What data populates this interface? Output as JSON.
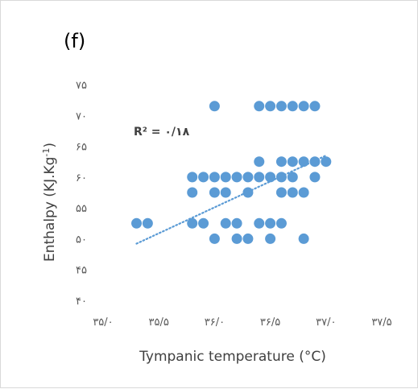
{
  "chart_data": {
    "type": "scatter",
    "panel_label": "(f)",
    "title": "",
    "xlabel": "Tympanic temperature (°C)",
    "ylabel": "Enthalpy (KJ.Kg-1)",
    "ylabel_main": "Enthalpy (KJ.Kg",
    "ylabel_sup": "-1",
    "ylabel_tail": ")",
    "xlim": [
      35.0,
      37.5
    ],
    "ylim": [
      40,
      75
    ],
    "x_ticks": [
      35.0,
      35.5,
      36.0,
      36.5,
      37.0,
      37.5
    ],
    "x_tick_labels": [
      "۳۵/۰",
      "۳۵/۵",
      "۳۶/۰",
      "۳۶/۵",
      "۳۷/۰",
      "۳۷/۵"
    ],
    "y_ticks": [
      40,
      45,
      50,
      55,
      60,
      65,
      70,
      75
    ],
    "y_tick_labels": [
      "۴۰",
      "۴۵",
      "۵۰",
      "۵۵",
      "۶۰",
      "۶۵",
      "۷۰",
      "۷۵"
    ],
    "grid": false,
    "marker_color": "#5b9bd5",
    "trendline_color": "#5b9bd5",
    "annotation": "R² = ۰/۱۸",
    "trendline": {
      "x": [
        35.3,
        37.0
      ],
      "y": [
        49.2,
        63.5
      ]
    },
    "points": [
      {
        "x": 36.0,
        "y": 71.5
      },
      {
        "x": 36.4,
        "y": 71.5
      },
      {
        "x": 36.5,
        "y": 71.5
      },
      {
        "x": 36.6,
        "y": 71.5
      },
      {
        "x": 36.7,
        "y": 71.5
      },
      {
        "x": 36.8,
        "y": 71.5
      },
      {
        "x": 36.9,
        "y": 71.5
      },
      {
        "x": 36.4,
        "y": 62.5
      },
      {
        "x": 36.6,
        "y": 62.5
      },
      {
        "x": 36.7,
        "y": 62.5
      },
      {
        "x": 36.8,
        "y": 62.5
      },
      {
        "x": 36.9,
        "y": 62.5
      },
      {
        "x": 37.0,
        "y": 62.5
      },
      {
        "x": 35.8,
        "y": 60
      },
      {
        "x": 35.9,
        "y": 60
      },
      {
        "x": 36.0,
        "y": 60
      },
      {
        "x": 36.1,
        "y": 60
      },
      {
        "x": 36.2,
        "y": 60
      },
      {
        "x": 36.3,
        "y": 60
      },
      {
        "x": 36.4,
        "y": 60
      },
      {
        "x": 36.5,
        "y": 60
      },
      {
        "x": 36.6,
        "y": 60
      },
      {
        "x": 36.7,
        "y": 60
      },
      {
        "x": 36.9,
        "y": 60
      },
      {
        "x": 35.8,
        "y": 57.5
      },
      {
        "x": 36.0,
        "y": 57.5
      },
      {
        "x": 36.1,
        "y": 57.5
      },
      {
        "x": 36.3,
        "y": 57.5
      },
      {
        "x": 36.6,
        "y": 57.5
      },
      {
        "x": 36.7,
        "y": 57.5
      },
      {
        "x": 36.8,
        "y": 57.5
      },
      {
        "x": 35.3,
        "y": 52.5
      },
      {
        "x": 35.4,
        "y": 52.5
      },
      {
        "x": 35.8,
        "y": 52.5
      },
      {
        "x": 35.9,
        "y": 52.5
      },
      {
        "x": 36.1,
        "y": 52.5
      },
      {
        "x": 36.2,
        "y": 52.5
      },
      {
        "x": 36.4,
        "y": 52.5
      },
      {
        "x": 36.5,
        "y": 52.5
      },
      {
        "x": 36.6,
        "y": 52.5
      },
      {
        "x": 36.0,
        "y": 50
      },
      {
        "x": 36.2,
        "y": 50
      },
      {
        "x": 36.3,
        "y": 50
      },
      {
        "x": 36.5,
        "y": 50
      },
      {
        "x": 36.8,
        "y": 50
      }
    ]
  }
}
